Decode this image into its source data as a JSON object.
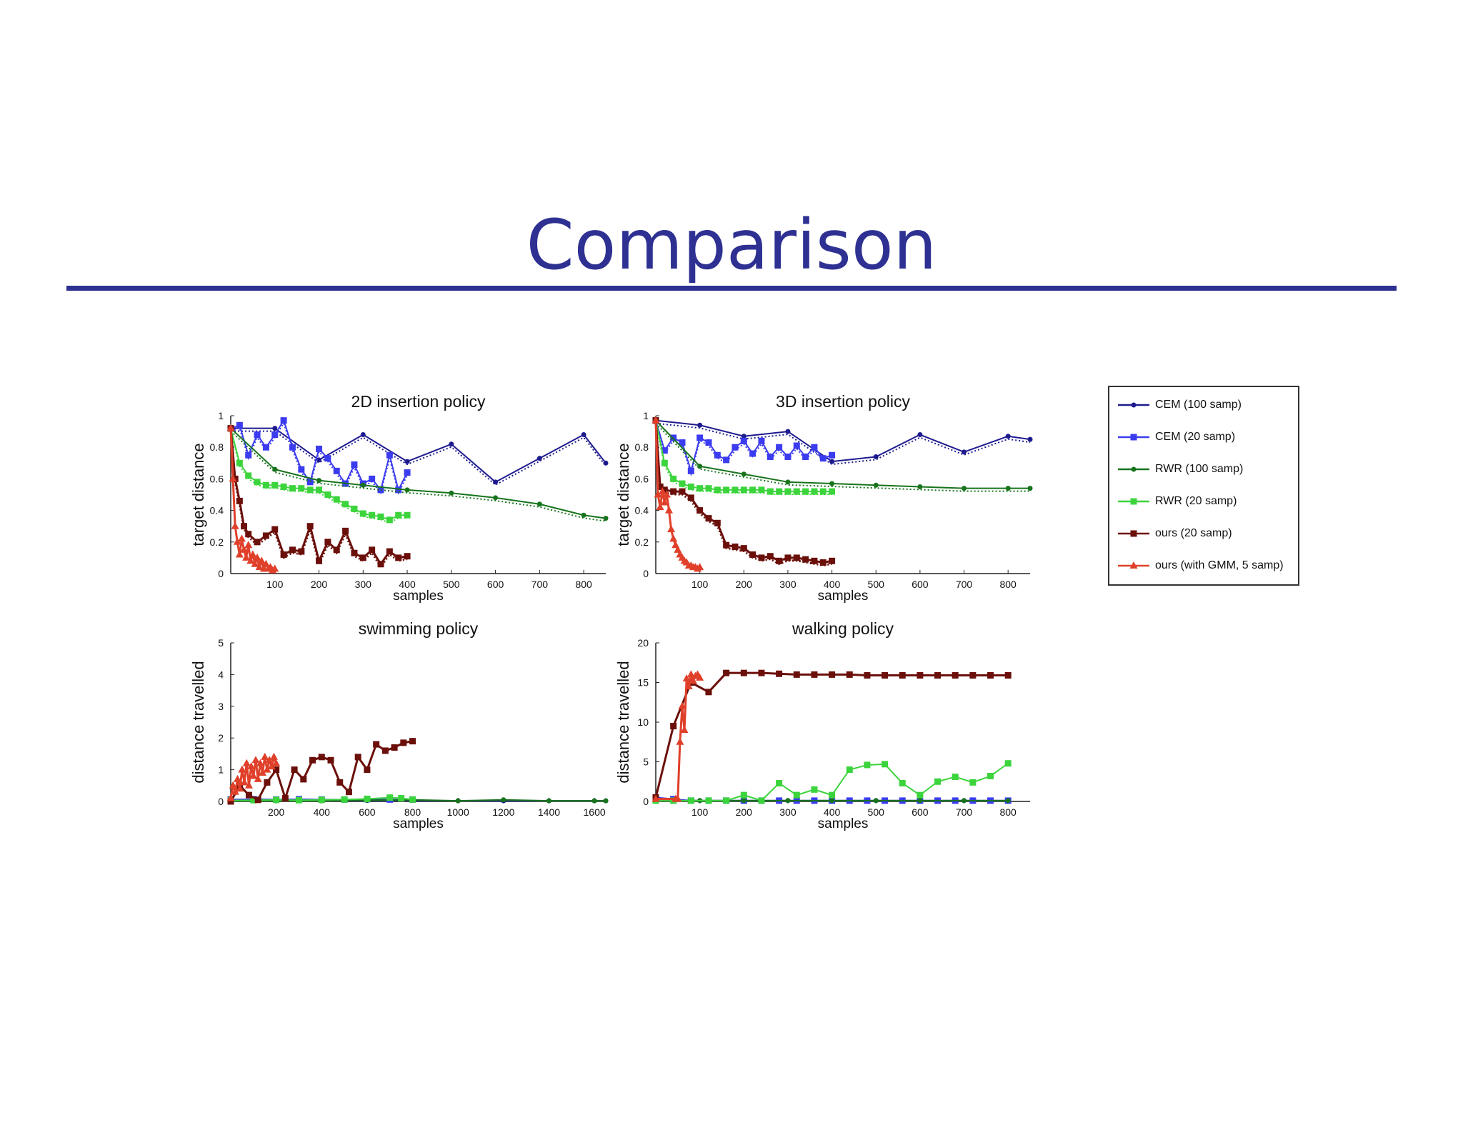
{
  "slide": {
    "title": "Comparison"
  },
  "colors": {
    "title": "#2E3192",
    "cem100": "#1E1B8F",
    "cem20": "#3B3BF0",
    "rwr100": "#17741C",
    "rwr20": "#3CD43C",
    "ours20": "#6B0F0A",
    "oursGMM": "#E0402A"
  },
  "legend": [
    {
      "key": "cem100",
      "label": "CEM (100 samp)",
      "marker": "circle"
    },
    {
      "key": "cem20",
      "label": "CEM (20 samp)",
      "marker": "square"
    },
    {
      "key": "rwr100",
      "label": "RWR (100 samp)",
      "marker": "circle"
    },
    {
      "key": "rwr20",
      "label": "RWR (20 samp)",
      "marker": "square"
    },
    {
      "key": "ours20",
      "label": "ours (20 samp)",
      "marker": "square"
    },
    {
      "key": "oursGMM",
      "label": "ours (with GMM, 5 samp)",
      "marker": "triangle"
    }
  ],
  "chart_data": [
    {
      "type": "line",
      "title": "2D insertion policy",
      "xlabel": "samples",
      "ylabel": "target distance",
      "xlim": [
        0,
        850
      ],
      "ylim": [
        0,
        1
      ],
      "xticks": [
        100,
        200,
        300,
        400,
        500,
        600,
        700,
        800
      ],
      "yticks": [
        0,
        0.2,
        0.4,
        0.6,
        0.8,
        1
      ],
      "ytick_labels": [
        "0",
        "0.2",
        "0.4",
        "0.6",
        "0.8",
        "1"
      ],
      "series": [
        {
          "key": "cem100",
          "x": [
            0,
            100,
            200,
            300,
            400,
            500,
            600,
            700,
            800,
            850
          ],
          "y": [
            0.92,
            0.92,
            0.72,
            0.88,
            0.71,
            0.82,
            0.58,
            0.73,
            0.88,
            0.7
          ]
        },
        {
          "key": "cem20",
          "x": [
            0,
            20,
            40,
            60,
            80,
            100,
            120,
            140,
            160,
            180,
            200,
            220,
            240,
            260,
            280,
            300,
            320,
            340,
            360,
            380,
            400
          ],
          "y": [
            0.92,
            0.94,
            0.75,
            0.88,
            0.8,
            0.88,
            0.97,
            0.8,
            0.66,
            0.58,
            0.79,
            0.73,
            0.65,
            0.57,
            0.69,
            0.57,
            0.6,
            0.53,
            0.75,
            0.53,
            0.64
          ]
        },
        {
          "key": "rwr100",
          "x": [
            0,
            100,
            200,
            300,
            400,
            500,
            600,
            700,
            800,
            850
          ],
          "y": [
            0.92,
            0.66,
            0.59,
            0.56,
            0.53,
            0.51,
            0.48,
            0.44,
            0.37,
            0.35
          ]
        },
        {
          "key": "rwr20",
          "x": [
            0,
            20,
            40,
            60,
            80,
            100,
            120,
            140,
            160,
            180,
            200,
            220,
            240,
            260,
            280,
            300,
            320,
            340,
            360,
            380,
            400
          ],
          "y": [
            0.92,
            0.7,
            0.62,
            0.58,
            0.56,
            0.56,
            0.55,
            0.54,
            0.54,
            0.53,
            0.53,
            0.5,
            0.47,
            0.44,
            0.41,
            0.38,
            0.37,
            0.36,
            0.34,
            0.37,
            0.37
          ]
        },
        {
          "key": "ours20",
          "x": [
            0,
            10,
            20,
            30,
            40,
            60,
            80,
            100,
            120,
            140,
            160,
            180,
            200,
            220,
            240,
            260,
            280,
            300,
            320,
            340,
            360,
            380,
            400
          ],
          "y": [
            0.92,
            0.6,
            0.46,
            0.3,
            0.25,
            0.2,
            0.24,
            0.28,
            0.12,
            0.15,
            0.14,
            0.3,
            0.08,
            0.2,
            0.15,
            0.27,
            0.13,
            0.1,
            0.15,
            0.06,
            0.14,
            0.1,
            0.11
          ]
        },
        {
          "key": "oursGMM",
          "x": [
            0,
            5,
            10,
            15,
            20,
            25,
            30,
            35,
            40,
            45,
            50,
            55,
            60,
            65,
            70,
            75,
            80,
            85,
            90,
            95,
            100
          ],
          "y": [
            0.92,
            0.6,
            0.3,
            0.2,
            0.12,
            0.22,
            0.15,
            0.1,
            0.18,
            0.08,
            0.12,
            0.06,
            0.1,
            0.04,
            0.08,
            0.03,
            0.06,
            0.03,
            0.04,
            0.02,
            0.03
          ]
        }
      ]
    },
    {
      "type": "line",
      "title": "3D insertion policy",
      "xlabel": "samples",
      "ylabel": "target distance",
      "xlim": [
        0,
        850
      ],
      "ylim": [
        0,
        1
      ],
      "xticks": [
        100,
        200,
        300,
        400,
        500,
        600,
        700,
        800
      ],
      "yticks": [
        0,
        0.2,
        0.4,
        0.6,
        0.8,
        1
      ],
      "ytick_labels": [
        "0",
        "0.2",
        "0.4",
        "0.6",
        "0.8",
        "1"
      ],
      "series": [
        {
          "key": "cem100",
          "x": [
            0,
            100,
            200,
            300,
            400,
            500,
            600,
            700,
            800,
            850
          ],
          "y": [
            0.97,
            0.94,
            0.87,
            0.9,
            0.71,
            0.74,
            0.88,
            0.77,
            0.87,
            0.85
          ]
        },
        {
          "key": "cem20",
          "x": [
            0,
            20,
            40,
            60,
            80,
            100,
            120,
            140,
            160,
            180,
            200,
            220,
            240,
            260,
            280,
            300,
            320,
            340,
            360,
            380,
            400
          ],
          "y": [
            0.97,
            0.78,
            0.86,
            0.83,
            0.65,
            0.86,
            0.83,
            0.75,
            0.72,
            0.8,
            0.84,
            0.76,
            0.84,
            0.74,
            0.8,
            0.74,
            0.81,
            0.74,
            0.8,
            0.73,
            0.75
          ]
        },
        {
          "key": "rwr100",
          "x": [
            0,
            100,
            200,
            300,
            400,
            500,
            600,
            700,
            800,
            850
          ],
          "y": [
            0.97,
            0.68,
            0.63,
            0.58,
            0.57,
            0.56,
            0.55,
            0.54,
            0.54,
            0.54
          ]
        },
        {
          "key": "rwr20",
          "x": [
            0,
            20,
            40,
            60,
            80,
            100,
            120,
            140,
            160,
            180,
            200,
            220,
            240,
            260,
            280,
            300,
            320,
            340,
            360,
            380,
            400
          ],
          "y": [
            0.97,
            0.7,
            0.6,
            0.57,
            0.55,
            0.54,
            0.54,
            0.53,
            0.53,
            0.53,
            0.53,
            0.53,
            0.53,
            0.52,
            0.52,
            0.52,
            0.52,
            0.52,
            0.52,
            0.52,
            0.52
          ]
        },
        {
          "key": "ours20",
          "x": [
            0,
            10,
            20,
            40,
            60,
            80,
            100,
            120,
            140,
            160,
            180,
            200,
            220,
            240,
            260,
            280,
            300,
            320,
            340,
            360,
            380,
            400
          ],
          "y": [
            0.97,
            0.55,
            0.53,
            0.52,
            0.52,
            0.48,
            0.4,
            0.35,
            0.32,
            0.18,
            0.17,
            0.16,
            0.12,
            0.1,
            0.11,
            0.08,
            0.1,
            0.1,
            0.09,
            0.08,
            0.07,
            0.08
          ]
        },
        {
          "key": "oursGMM",
          "x": [
            0,
            5,
            10,
            15,
            20,
            25,
            30,
            35,
            40,
            45,
            50,
            55,
            60,
            65,
            70,
            75,
            80,
            85,
            90,
            95,
            100
          ],
          "y": [
            0.97,
            0.5,
            0.42,
            0.52,
            0.45,
            0.5,
            0.4,
            0.28,
            0.22,
            0.18,
            0.15,
            0.12,
            0.1,
            0.08,
            0.07,
            0.05,
            0.05,
            0.04,
            0.04,
            0.03,
            0.04
          ]
        }
      ]
    },
    {
      "type": "line",
      "title": "swimming policy",
      "xlabel": "samples",
      "ylabel": "distance travelled",
      "xlim": [
        0,
        1650
      ],
      "ylim": [
        0,
        5
      ],
      "xticks": [
        200,
        400,
        600,
        800,
        1000,
        1200,
        1400,
        1600
      ],
      "yticks": [
        0,
        1,
        2,
        3,
        4,
        5
      ],
      "ytick_labels": [
        "0",
        "1",
        "2",
        "3",
        "4",
        "5"
      ],
      "series": [
        {
          "key": "cem100",
          "x": [
            0,
            200,
            400,
            600,
            800,
            1000,
            1200,
            1400,
            1600,
            1650
          ],
          "y": [
            0.02,
            0.03,
            0.02,
            0.03,
            0.03,
            0.02,
            0.02,
            0.02,
            0.02,
            0.02
          ]
        },
        {
          "key": "cem20",
          "x": [
            0,
            100,
            200,
            300,
            400,
            500,
            600,
            700,
            800
          ],
          "y": [
            0.06,
            0.07,
            0.06,
            0.07,
            0.06,
            0.06,
            0.07,
            0.06,
            0.06
          ]
        },
        {
          "key": "rwr100",
          "x": [
            0,
            200,
            400,
            600,
            800,
            1000,
            1200,
            1400,
            1600,
            1650
          ],
          "y": [
            0.02,
            0.02,
            0.02,
            0.04,
            0.05,
            0.02,
            0.05,
            0.02,
            0.02,
            0.02
          ]
        },
        {
          "key": "rwr20",
          "x": [
            0,
            100,
            200,
            300,
            400,
            500,
            600,
            700,
            750,
            800
          ],
          "y": [
            0.03,
            0.04,
            0.05,
            0.04,
            0.05,
            0.06,
            0.08,
            0.12,
            0.1,
            0.06
          ]
        },
        {
          "key": "ours20",
          "x": [
            0,
            40,
            80,
            120,
            160,
            200,
            240,
            280,
            320,
            360,
            400,
            440,
            480,
            520,
            560,
            600,
            640,
            680,
            720,
            760,
            800
          ],
          "y": [
            0,
            0.5,
            0.2,
            0.05,
            0.6,
            1.0,
            0.1,
            1.0,
            0.7,
            1.3,
            1.4,
            1.3,
            0.6,
            0.3,
            1.4,
            1.0,
            1.8,
            1.6,
            1.7,
            1.85,
            1.9
          ]
        },
        {
          "key": "oursGMM",
          "x": [
            0,
            10,
            20,
            30,
            40,
            50,
            60,
            70,
            80,
            90,
            100,
            110,
            120,
            130,
            140,
            150,
            160,
            170,
            180,
            190,
            200
          ],
          "y": [
            0.1,
            0.5,
            0.3,
            0.7,
            0.4,
            1.0,
            0.6,
            1.2,
            0.5,
            1.1,
            0.8,
            1.3,
            0.7,
            1.2,
            0.9,
            1.4,
            1.0,
            1.3,
            1.1,
            1.4,
            1.2
          ]
        }
      ]
    },
    {
      "type": "line",
      "title": "walking policy",
      "xlabel": "samples",
      "ylabel": "distance travelled",
      "xlim": [
        0,
        850
      ],
      "ylim": [
        0,
        20
      ],
      "xticks": [
        100,
        200,
        300,
        400,
        500,
        600,
        700,
        800
      ],
      "yticks": [
        0,
        5,
        10,
        15,
        20
      ],
      "ytick_labels": [
        "0",
        "5",
        "10",
        "15",
        "20"
      ],
      "series": [
        {
          "key": "cem100",
          "x": [
            0,
            100,
            200,
            300,
            400,
            500,
            600,
            700,
            800
          ],
          "y": [
            0.2,
            0.1,
            0.1,
            0.1,
            0.1,
            0.1,
            0.1,
            0.1,
            0.1
          ]
        },
        {
          "key": "cem20",
          "x": [
            0,
            40,
            80,
            120,
            160,
            200,
            240,
            280,
            320,
            360,
            400,
            440,
            480,
            520,
            560,
            600,
            640,
            680,
            720,
            760,
            800
          ],
          "y": [
            0.5,
            0.3,
            0.1,
            0.1,
            0.1,
            0.1,
            0.1,
            0.1,
            0.1,
            0.1,
            0.1,
            0.1,
            0.1,
            0.1,
            0.1,
            0.1,
            0.1,
            0.1,
            0.1,
            0.1,
            0.1
          ]
        },
        {
          "key": "rwr100",
          "x": [
            0,
            100,
            200,
            300,
            400,
            500,
            600,
            700,
            800
          ],
          "y": [
            0.1,
            0.1,
            0.1,
            0.1,
            0.1,
            0.1,
            0.1,
            0.1,
            0.1
          ]
        },
        {
          "key": "rwr20",
          "x": [
            0,
            40,
            80,
            120,
            160,
            200,
            240,
            280,
            320,
            360,
            400,
            440,
            480,
            520,
            560,
            600,
            640,
            680,
            720,
            760,
            800
          ],
          "y": [
            0.1,
            0.1,
            0.1,
            0.1,
            0.1,
            0.8,
            0.1,
            2.3,
            0.8,
            1.5,
            0.8,
            4.0,
            4.6,
            4.7,
            2.3,
            0.8,
            2.5,
            3.1,
            2.4,
            3.2,
            4.8
          ]
        },
        {
          "key": "ours20",
          "x": [
            0,
            40,
            80,
            120,
            160,
            200,
            240,
            280,
            320,
            360,
            400,
            440,
            480,
            520,
            560,
            600,
            640,
            680,
            720,
            760,
            800
          ],
          "y": [
            0.5,
            9.5,
            15.0,
            13.8,
            16.2,
            16.2,
            16.2,
            16.1,
            16.0,
            16.0,
            16.0,
            16.0,
            15.9,
            15.9,
            15.9,
            15.9,
            15.9,
            15.9,
            15.9,
            15.9,
            15.9
          ]
        },
        {
          "key": "oursGMM",
          "x": [
            0,
            45,
            50,
            55,
            60,
            65,
            70,
            75,
            80,
            85,
            90,
            95,
            100
          ],
          "y": [
            0.3,
            0.3,
            0.3,
            7.5,
            12.0,
            9.0,
            15.5,
            14.5,
            16.0,
            15.2,
            15.8,
            16.0,
            15.6
          ]
        }
      ]
    }
  ]
}
